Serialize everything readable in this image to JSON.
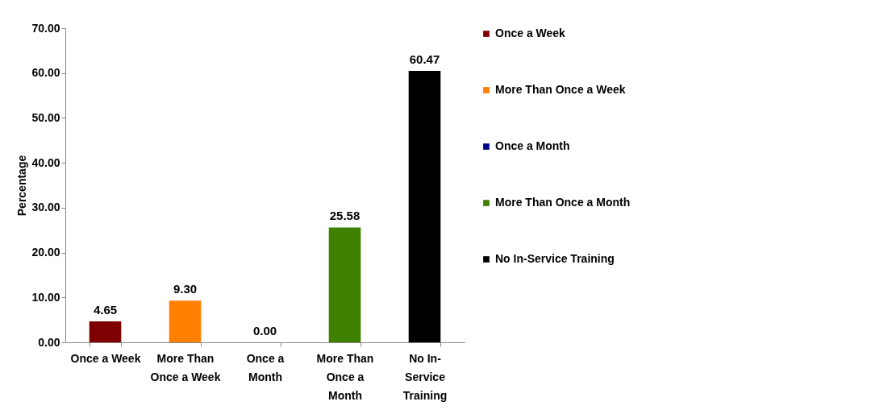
{
  "chart_data": {
    "type": "bar",
    "ylabel": "Percentage",
    "stacked": true,
    "categories": [
      "Once a Week",
      "More Than Once a Week",
      "Once a Month",
      "More Than Once a Month",
      "No In-Service Training"
    ],
    "series": [
      {
        "name": "Once a Week",
        "color": "#7f0000",
        "values": [
          4.65,
          null,
          null,
          null,
          null
        ],
        "value_labels": [
          "4.65",
          null,
          null,
          null,
          null
        ]
      },
      {
        "name": "More Than Once a Week",
        "color": "#ff8000",
        "values": [
          null,
          9.3,
          null,
          null,
          null
        ],
        "value_labels": [
          null,
          "9.30",
          null,
          null,
          null
        ]
      },
      {
        "name": "Once a Month",
        "color": "#000080",
        "values": [
          null,
          null,
          0.0,
          null,
          null
        ],
        "value_labels": [
          null,
          null,
          "0.00",
          null,
          null
        ]
      },
      {
        "name": "More Than Once a Month",
        "color": "#3f8000",
        "values": [
          null,
          null,
          null,
          25.58,
          null
        ],
        "value_labels": [
          null,
          null,
          null,
          "25.58",
          null
        ]
      },
      {
        "name": "No In-Service Training",
        "color": "#000000",
        "values": [
          null,
          null,
          null,
          null,
          60.47
        ],
        "value_labels": [
          null,
          null,
          null,
          null,
          "60.47"
        ]
      }
    ],
    "ylim": [
      0,
      70
    ],
    "yticks": [
      {
        "value": 0,
        "label": "0.00"
      },
      {
        "value": 10,
        "label": "10.00"
      },
      {
        "value": 20,
        "label": "20.00"
      },
      {
        "value": 30,
        "label": "30.00"
      },
      {
        "value": 40,
        "label": "40.00"
      },
      {
        "value": 50,
        "label": "50.00"
      },
      {
        "value": 60,
        "label": "60.00"
      },
      {
        "value": 70,
        "label": "70.00"
      }
    ],
    "legend": "right",
    "grid": false
  }
}
